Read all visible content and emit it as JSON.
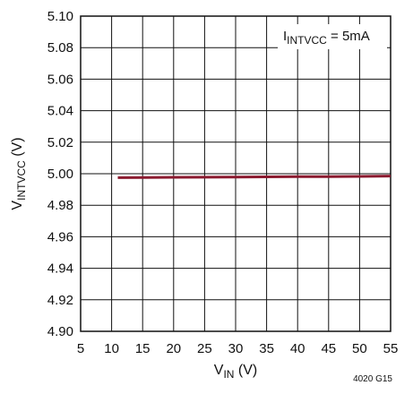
{
  "chart_data": {
    "type": "line",
    "title": "",
    "xlabel": {
      "main": "V",
      "sub": "IN",
      "unit": " (V)"
    },
    "ylabel": {
      "main": "V",
      "sub": "INTVCC",
      "unit": " (V)"
    },
    "xlim": [
      5,
      55
    ],
    "ylim": [
      4.9,
      5.1
    ],
    "xticks": [
      5,
      10,
      15,
      20,
      25,
      30,
      35,
      40,
      45,
      50,
      55
    ],
    "xtick_labels": [
      "5",
      "10",
      "15",
      "20",
      "25",
      "30",
      "35",
      "40",
      "45",
      "50",
      "55"
    ],
    "yticks": [
      4.9,
      4.92,
      4.94,
      4.96,
      4.98,
      5.0,
      5.02,
      5.04,
      5.06,
      5.08,
      5.1
    ],
    "ytick_labels": [
      "4.90",
      "4.92",
      "4.94",
      "4.96",
      "4.98",
      "5.00",
      "5.02",
      "5.04",
      "5.06",
      "5.08",
      "5.10"
    ],
    "grid": true,
    "annotation": {
      "main": "I",
      "sub": "INTVCC",
      "rest": " = 5mA"
    },
    "figure_id": "4020 G15",
    "series": [
      {
        "color": "#8b1a2f",
        "x": [
          11,
          15,
          20,
          25,
          30,
          35,
          40,
          45,
          50,
          55
        ],
        "y": [
          4.9975,
          4.9976,
          4.9977,
          4.9978,
          4.9979,
          4.998,
          4.9981,
          4.9982,
          4.9983,
          4.9985
        ]
      }
    ]
  }
}
